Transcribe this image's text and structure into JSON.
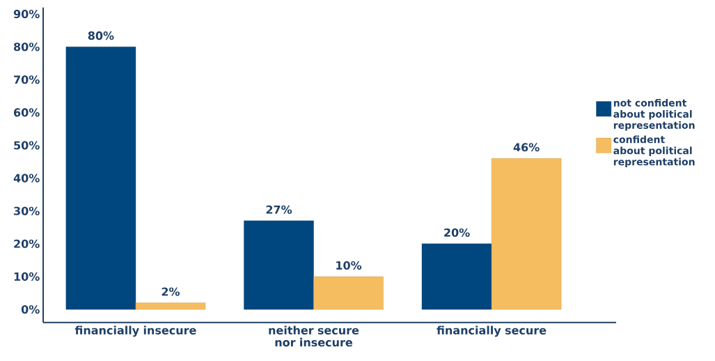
{
  "chart_data": {
    "type": "bar",
    "categories": [
      "financially insecure",
      "neither secure nor insecure",
      "financially secure"
    ],
    "series": [
      {
        "name": "not confident about political representation",
        "color": "#00467f",
        "values": [
          80,
          27,
          20
        ],
        "value_labels": [
          "80%",
          "27%",
          "20%"
        ]
      },
      {
        "name": "confident about political representation",
        "color": "#f6bd60",
        "values": [
          2,
          10,
          46
        ],
        "value_labels": [
          "2%",
          "10%",
          "46%"
        ]
      }
    ],
    "ylim": [
      -4,
      92
    ],
    "yticks": [
      {
        "value": 0,
        "label": "0%"
      },
      {
        "value": 10,
        "label": "10%"
      },
      {
        "value": 20,
        "label": "20%"
      },
      {
        "value": 30,
        "label": "30%"
      },
      {
        "value": 40,
        "label": "40%"
      },
      {
        "value": 50,
        "label": "50%"
      },
      {
        "value": 60,
        "label": "60%"
      },
      {
        "value": 70,
        "label": "70%"
      },
      {
        "value": 80,
        "label": "80%"
      },
      {
        "value": 90,
        "label": "90%"
      }
    ],
    "grid": false,
    "legend": "right"
  }
}
